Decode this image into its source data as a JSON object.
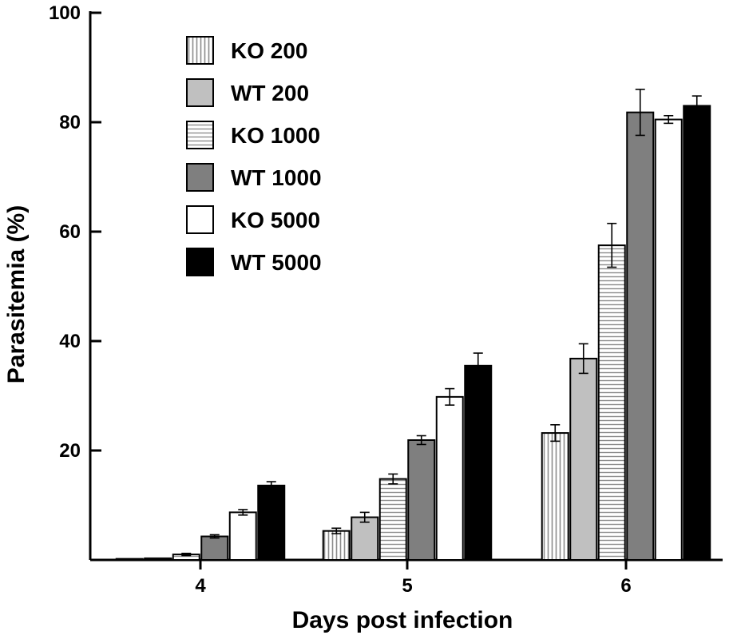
{
  "chart_data": {
    "type": "bar",
    "xlabel": "Days post infection",
    "ylabel": "Parasitemia (%)",
    "ylim": [
      0,
      100
    ],
    "yticks": [
      20,
      40,
      60,
      80,
      100
    ],
    "categories": [
      "4",
      "5",
      "6"
    ],
    "series": [
      {
        "name": "KO 200",
        "fill": "vertical-stripes",
        "color": "#cccccc",
        "values": [
          0.2,
          5.3,
          23.2
        ],
        "errors": [
          0.1,
          0.5,
          1.5
        ]
      },
      {
        "name": "WT 200",
        "fill": "solid",
        "color": "#c0c0c0",
        "values": [
          0.3,
          7.8,
          36.8
        ],
        "errors": [
          0.1,
          0.9,
          2.7
        ]
      },
      {
        "name": "KO 1000",
        "fill": "horizontal-stripes",
        "color": "#e5e5e5",
        "values": [
          1.0,
          14.8,
          57.5
        ],
        "errors": [
          0.2,
          0.9,
          4.0
        ]
      },
      {
        "name": "WT 1000",
        "fill": "solid",
        "color": "#7f7f7f",
        "values": [
          4.3,
          21.9,
          81.8
        ],
        "errors": [
          0.3,
          0.8,
          4.2
        ]
      },
      {
        "name": "KO 5000",
        "fill": "solid",
        "color": "#ffffff",
        "values": [
          8.7,
          29.8,
          80.5
        ],
        "errors": [
          0.5,
          1.5,
          0.7
        ]
      },
      {
        "name": "WT 5000",
        "fill": "solid",
        "color": "#000000",
        "values": [
          13.6,
          35.5,
          83.0
        ],
        "errors": [
          0.7,
          2.3,
          1.8
        ]
      }
    ]
  }
}
